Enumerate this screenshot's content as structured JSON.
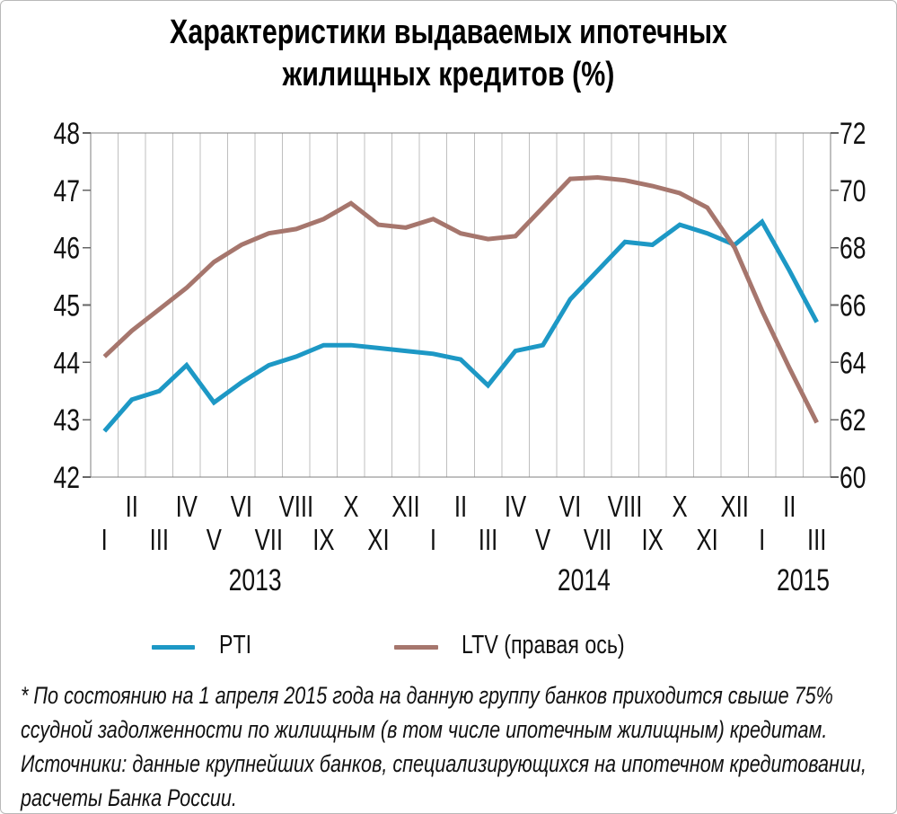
{
  "title": {
    "line1": "Характеристики выдаваемых ипотечных",
    "line2": "жилищных кредитов (%)"
  },
  "chart_data": {
    "type": "line",
    "x_months": [
      "I",
      "II",
      "III",
      "IV",
      "V",
      "VI",
      "VII",
      "VIII",
      "IX",
      "X",
      "XI",
      "XII",
      "I",
      "II",
      "III",
      "IV",
      "V",
      "VI",
      "VII",
      "VIII",
      "IX",
      "X",
      "XI",
      "XII",
      "I",
      "II",
      "III"
    ],
    "year_labels": [
      {
        "label": "2013",
        "boundary_offset": 6
      },
      {
        "label": "2014",
        "boundary_offset": 18
      },
      {
        "label": "2015",
        "boundary_offset": 26
      }
    ],
    "left_axis": {
      "min": 42,
      "max": 48,
      "ticks": [
        48,
        47,
        46,
        45,
        44,
        43,
        42
      ]
    },
    "right_axis": {
      "min": 60,
      "max": 72,
      "ticks": [
        72,
        70,
        68,
        66,
        64,
        62,
        60
      ]
    },
    "grid": {
      "vertical": "monthly-category-boundaries",
      "horizontal": false
    },
    "legend_position": "bottom",
    "series": [
      {
        "name": "PTI",
        "axis": "left",
        "color": "#1d98c5",
        "values": [
          42.8,
          43.35,
          43.5,
          43.95,
          43.3,
          43.65,
          43.95,
          44.1,
          44.3,
          44.3,
          44.25,
          44.2,
          44.15,
          44.05,
          43.6,
          44.2,
          44.3,
          45.1,
          45.6,
          46.1,
          46.05,
          46.4,
          46.25,
          46.05,
          46.45,
          45.6,
          44.7
        ]
      },
      {
        "name": "LTV (правая ось)",
        "axis": "right",
        "color": "#a6766d",
        "values": [
          64.2,
          65.1,
          65.85,
          66.6,
          67.5,
          68.1,
          68.5,
          68.65,
          69.0,
          69.55,
          68.8,
          68.7,
          69.0,
          68.5,
          68.3,
          68.4,
          69.4,
          70.4,
          70.45,
          70.35,
          70.15,
          69.9,
          69.4,
          68.0,
          65.8,
          63.8,
          61.9
        ]
      }
    ]
  },
  "footnote": {
    "note_lines": [
      "* По состоянию на 1 апреля 2015 года на данную группу банков приходится свыше 75%",
      "ссудной задолженности по жилищным (в том числе ипотечным жилищным) кредитам."
    ],
    "source_lines": [
      "Источники: данные крупнейших банков, специализирующихся на ипотечном кредитовании,",
      "расчеты Банка России."
    ]
  },
  "colors": {
    "grid": "#bfbfbf",
    "frame": "#7f7f7f",
    "tick": "#666666",
    "text": "#111111"
  }
}
